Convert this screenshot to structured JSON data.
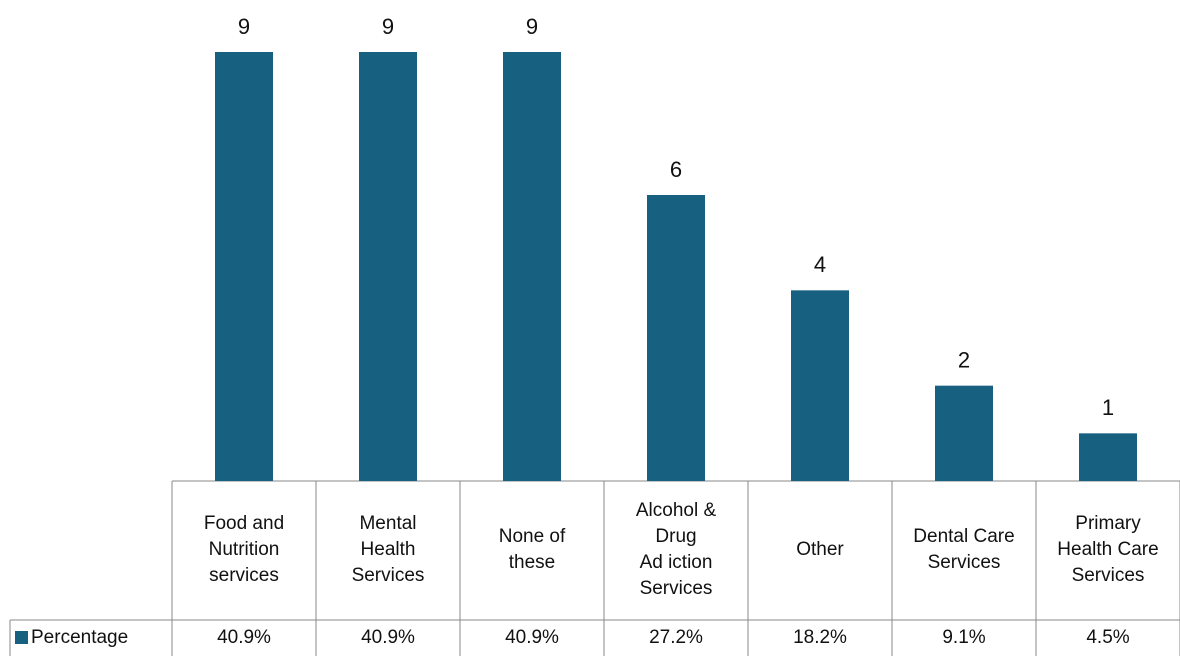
{
  "chart_data": {
    "type": "bar",
    "categories": [
      [
        "Food and",
        "Nutrition",
        "services"
      ],
      [
        "Mental",
        "Health",
        "Services"
      ],
      [
        "None of",
        "these"
      ],
      [
        "Alcohol &",
        "Drug",
        "Ad iction",
        "Services"
      ],
      [
        "Other"
      ],
      [
        "Dental Care",
        "Services"
      ],
      [
        "Primary",
        "Health Care",
        "Services"
      ]
    ],
    "series": [
      {
        "name": "Percentage",
        "color": "#17607f",
        "values": [
          9,
          9,
          9,
          6,
          4,
          2,
          1
        ],
        "table_values": [
          "40.9%",
          "40.9%",
          "40.9%",
          "27.2%",
          "18.2%",
          "9.1%",
          "4.5%"
        ]
      }
    ]
  }
}
